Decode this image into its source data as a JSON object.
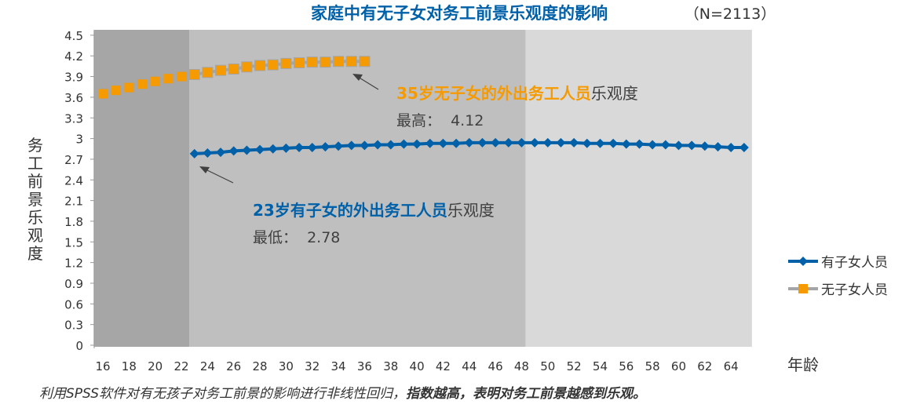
{
  "chart_data": {
    "type": "line",
    "title": "家庭中有无子女对务工前景乐观度的影响",
    "subtitle": "（N=2113）",
    "xlabel": "年龄",
    "ylabel": "务工前景乐观度",
    "ylim": [
      0,
      4.5
    ],
    "xlim": [
      16,
      65
    ],
    "y_ticks": [
      "0",
      "0.3",
      "0.6",
      "0.9",
      "1.2",
      "1.5",
      "1.8",
      "2.1",
      "2.4",
      "2.7",
      "3",
      "3.3",
      "3.6",
      "3.9",
      "4.2",
      "4.5"
    ],
    "x_ticks": [
      "16",
      "18",
      "20",
      "22",
      "24",
      "26",
      "28",
      "30",
      "32",
      "34",
      "36",
      "38",
      "40",
      "42",
      "44",
      "46",
      "48",
      "50",
      "52",
      "54",
      "56",
      "58",
      "60",
      "62",
      "64"
    ],
    "shaded_bands": [
      {
        "from": 15.3,
        "to": 22.6,
        "color": "#a6a6a6"
      },
      {
        "from": 22.6,
        "to": 48.3,
        "color": "#bfbfbf"
      },
      {
        "from": 48.3,
        "to": 65.6,
        "color": "#d9d9d9"
      }
    ],
    "legend_position": "right",
    "series": [
      {
        "name": "有子女人员",
        "color": "#0060a8",
        "marker": "diamond",
        "x": [
          23,
          24,
          25,
          26,
          27,
          28,
          29,
          30,
          31,
          32,
          33,
          34,
          35,
          36,
          37,
          38,
          39,
          40,
          41,
          42,
          43,
          44,
          45,
          46,
          47,
          48,
          49,
          50,
          51,
          52,
          53,
          54,
          55,
          56,
          57,
          58,
          59,
          60,
          61,
          62,
          63,
          64,
          65
        ],
        "values": [
          2.78,
          2.79,
          2.8,
          2.82,
          2.83,
          2.84,
          2.85,
          2.86,
          2.87,
          2.87,
          2.88,
          2.89,
          2.9,
          2.9,
          2.91,
          2.91,
          2.92,
          2.92,
          2.93,
          2.93,
          2.93,
          2.94,
          2.94,
          2.94,
          2.94,
          2.94,
          2.94,
          2.94,
          2.94,
          2.94,
          2.93,
          2.93,
          2.93,
          2.92,
          2.92,
          2.91,
          2.91,
          2.9,
          2.9,
          2.89,
          2.88,
          2.87,
          2.87
        ]
      },
      {
        "name": "无子女人员",
        "color": "#f59a00",
        "line_color": "#a5a5a5",
        "marker": "square",
        "x": [
          16,
          17,
          18,
          19,
          20,
          21,
          22,
          23,
          24,
          25,
          26,
          27,
          28,
          29,
          30,
          31,
          32,
          33,
          34,
          35,
          36
        ],
        "values": [
          3.65,
          3.7,
          3.74,
          3.79,
          3.83,
          3.87,
          3.9,
          3.93,
          3.96,
          3.99,
          4.01,
          4.04,
          4.06,
          4.07,
          4.09,
          4.1,
          4.11,
          4.11,
          4.12,
          4.12,
          4.12
        ]
      }
    ],
    "annotations": [
      {
        "highlight": "35岁无子女的外出务工人员",
        "rest": "乐观度",
        "line2": "最高：  4.12",
        "color": "#f59a00"
      },
      {
        "highlight": "23岁有子女的外出务工人员",
        "rest": "乐观度",
        "line2": "最低：  2.78",
        "color": "#0060a8"
      }
    ]
  },
  "footnote": {
    "normal": "利用SPSS软件对有无孩子对务工前景的影响进行非线性回归，",
    "bold": "指数越高，表明对务工前景越感到乐观。"
  }
}
